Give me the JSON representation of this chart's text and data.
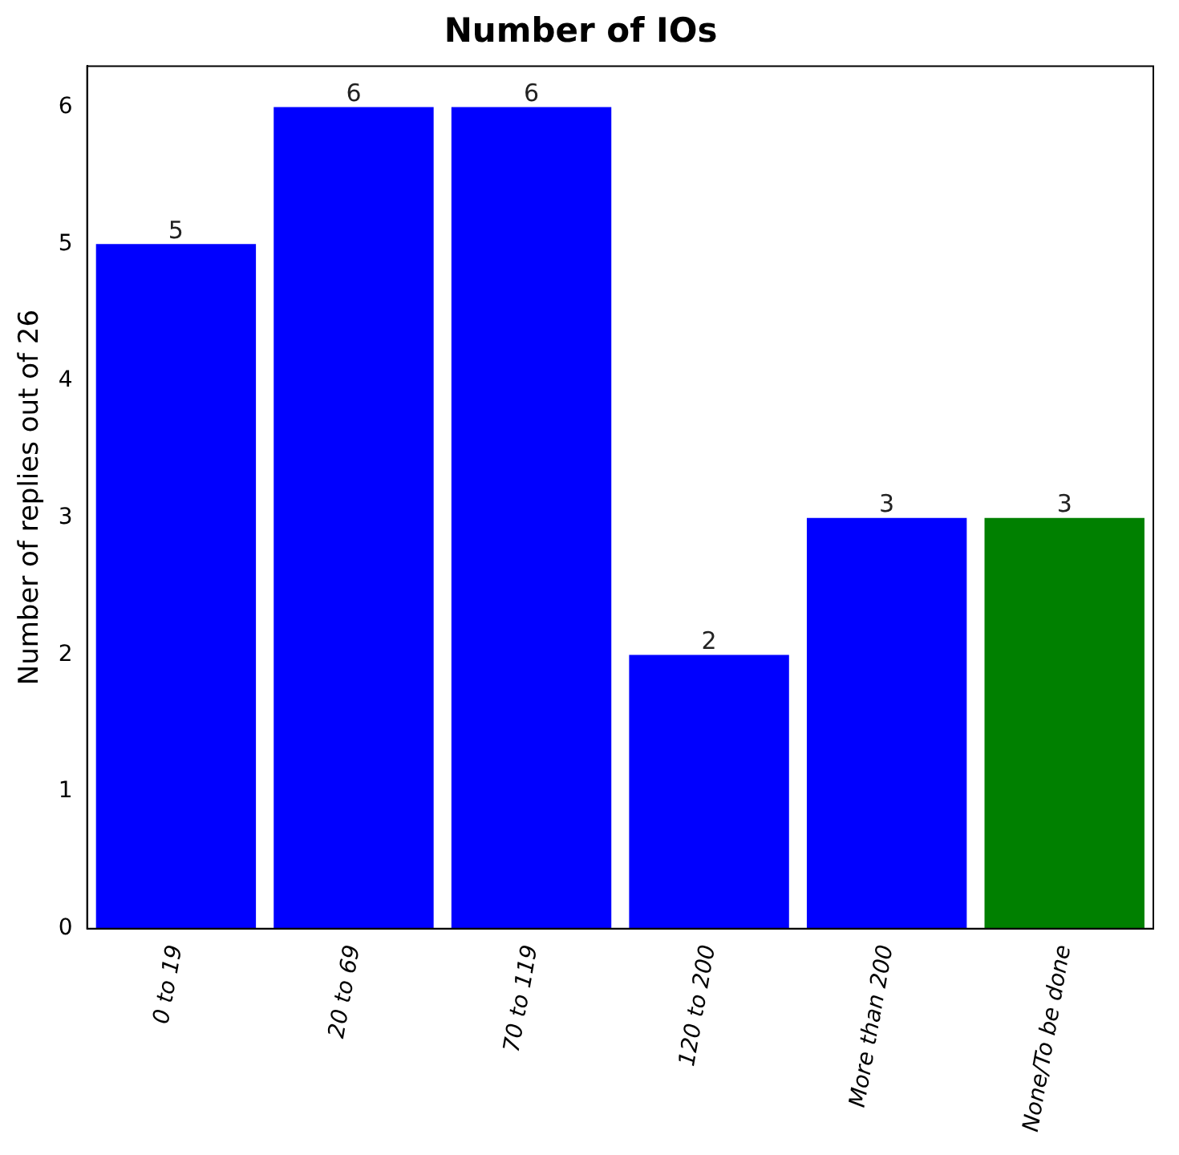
{
  "chart_data": {
    "type": "bar",
    "title": "Number of IOs",
    "ylabel": "Number of replies out of 26",
    "categories": [
      "0 to 19",
      "20 to 69",
      "70 to 119",
      "120 to 200",
      "More than 200",
      "None/To be done"
    ],
    "values": [
      5,
      6,
      6,
      2,
      3,
      3
    ],
    "colors": [
      "#0000ff",
      "#0000ff",
      "#0000ff",
      "#0000ff",
      "#0000ff",
      "#008000"
    ],
    "ylim": [
      0,
      6.3
    ],
    "yticks": [
      0,
      1,
      2,
      3,
      4,
      5,
      6
    ],
    "grid": false,
    "legend": false,
    "data_labels": true
  }
}
